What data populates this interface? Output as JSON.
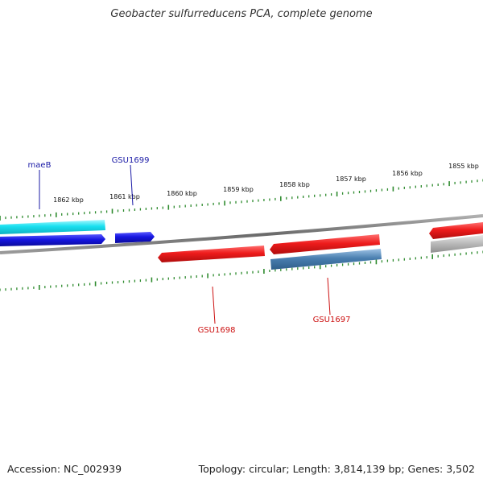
{
  "title": "Geobacter sulfurreducens PCA, complete genome",
  "footer": {
    "accession": "Accession: NC_002939",
    "topology": "Topology: circular",
    "length": "Length: 3,814,139 bp",
    "genes": "Genes: 3,502"
  },
  "scale_labels": [
    "1862 kbp",
    "1861 kbp",
    "1860 kbp",
    "1859 kbp",
    "1858 kbp",
    "1857 kbp",
    "1856 kbp",
    "1855 kbp"
  ],
  "gene_labels": {
    "maeB": "maeB",
    "GSU1699": "GSU1699",
    "GSU1698": "GSU1698",
    "GSU1697": "GSU1697"
  },
  "colors": {
    "backbone": "#777777",
    "tick": "#2e8b2e",
    "label_forward": "#1a1aa6",
    "label_reverse": "#cc1010",
    "cyan_feature": "#19e0f0",
    "blue_feature": "#1515e0",
    "red_feature": "#ee1c1c",
    "steelblue_feature": "#4a7fb0",
    "gray_feature": "#b8b8b8"
  }
}
